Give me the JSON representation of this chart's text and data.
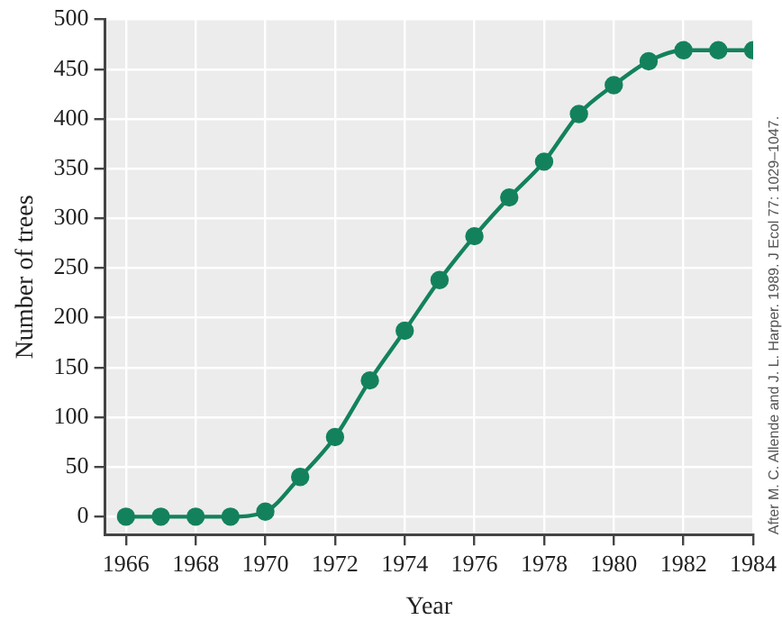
{
  "chart_data": {
    "type": "line",
    "xlabel": "Year",
    "ylabel": "Number of trees",
    "x": [
      1966,
      1967,
      1968,
      1969,
      1970,
      1971,
      1972,
      1973,
      1974,
      1975,
      1976,
      1977,
      1978,
      1979,
      1980,
      1981,
      1982,
      1983,
      1984
    ],
    "series": [
      {
        "color": "#13825c",
        "values": [
          0,
          0,
          0,
          0,
          5,
          40,
          80,
          137,
          187,
          238,
          282,
          321,
          357,
          405,
          434,
          458,
          469,
          469,
          469
        ]
      }
    ],
    "xlim": [
      1965.4,
      1984
    ],
    "xticks": [
      1966,
      1968,
      1970,
      1972,
      1974,
      1976,
      1978,
      1980,
      1982,
      1984
    ],
    "ylim": [
      -18,
      500
    ],
    "yticks": [
      0,
      50,
      100,
      150,
      200,
      250,
      300,
      350,
      400,
      450,
      500
    ],
    "grid": true,
    "legend": false,
    "marker": "circle",
    "line_style": "solid",
    "annotations": [
      "After M. C. Allende and J. L. Harper. 1989. J Ecol 77: 1029–1047."
    ]
  }
}
